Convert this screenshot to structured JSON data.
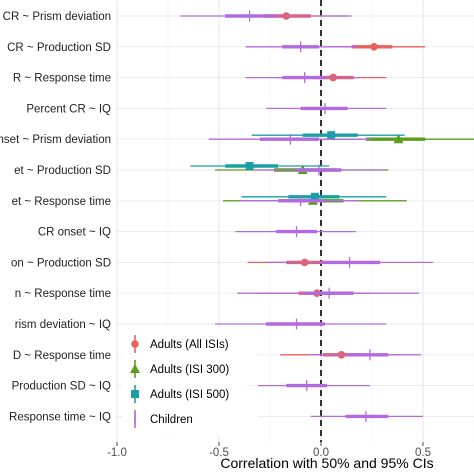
{
  "chart_data": {
    "type": "forest",
    "xlabel": "Correlation with 50% and 95% CIs",
    "xlim": [
      -1.0,
      0.75
    ],
    "x_ticks": [
      -1.0,
      -0.5,
      0.0,
      0.5
    ],
    "x_tick_labels": [
      "-1.0",
      "-0.5",
      "0.0",
      "0.5"
    ],
    "reference_line": 0,
    "grid": true,
    "legend_position": "bottom-left",
    "rows": [
      "CR ~ Prism deviation",
      "CR ~ Production SD",
      "R ~ Response time",
      "Percent CR ~ IQ",
      "onset ~ Prism deviation",
      "et ~ Production SD",
      "et ~ Response time",
      "CR onset ~ IQ",
      "on ~ Production SD",
      "n ~ Response time",
      "rism deviation ~ IQ",
      "D ~ Response time",
      "Production SD ~ IQ",
      "Response time ~ IQ"
    ],
    "series": [
      {
        "name": "Adults (All ISIs)",
        "color": "#e8615a",
        "marker": "circle",
        "points": [
          {
            "row": 0,
            "est": -0.17,
            "lo50": -0.28,
            "hi50": -0.05,
            "lo95": -0.44,
            "hi95": 0.13
          },
          {
            "row": 1,
            "est": 0.26,
            "lo50": 0.15,
            "hi50": 0.35,
            "lo95": 0.01,
            "hi95": 0.51
          },
          {
            "row": 2,
            "est": 0.06,
            "lo50": -0.03,
            "hi50": 0.16,
            "lo95": -0.22,
            "hi95": 0.32
          },
          {
            "row": 8,
            "est": -0.08,
            "lo50": -0.17,
            "hi50": 0.02,
            "lo95": -0.36,
            "hi95": 0.23
          },
          {
            "row": 9,
            "est": -0.02,
            "lo50": -0.11,
            "hi50": 0.07,
            "lo95": -0.31,
            "hi95": 0.24
          },
          {
            "row": 11,
            "est": 0.1,
            "lo50": 0.01,
            "hi50": 0.2,
            "lo95": -0.2,
            "hi95": 0.38
          }
        ]
      },
      {
        "name": "Adults (ISI 300)",
        "color": "#5a9e1a",
        "marker": "triangle",
        "points": [
          {
            "row": 4,
            "est": 0.38,
            "lo50": 0.22,
            "hi50": 0.51,
            "lo95": -0.12,
            "hi95": 0.75
          },
          {
            "row": 5,
            "est": -0.09,
            "lo50": -0.23,
            "hi50": 0.07,
            "lo95": -0.52,
            "hi95": 0.33
          },
          {
            "row": 6,
            "est": -0.04,
            "lo50": -0.2,
            "hi50": 0.11,
            "lo95": -0.48,
            "hi95": 0.42
          }
        ]
      },
      {
        "name": "Adults (ISI 500)",
        "color": "#1a9fa6",
        "marker": "square",
        "points": [
          {
            "row": 4,
            "est": 0.05,
            "lo50": -0.09,
            "hi50": 0.18,
            "lo95": -0.34,
            "hi95": 0.41
          },
          {
            "row": 5,
            "est": -0.35,
            "lo50": -0.47,
            "hi50": -0.21,
            "lo95": -0.64,
            "hi95": 0.04
          },
          {
            "row": 6,
            "est": -0.03,
            "lo50": -0.16,
            "hi50": 0.09,
            "lo95": -0.39,
            "hi95": 0.32
          }
        ]
      },
      {
        "name": "Children",
        "color": "#b36ae0",
        "marker": "cross",
        "points": [
          {
            "row": 0,
            "est": -0.35,
            "lo50": -0.47,
            "hi50": -0.22,
            "lo95": -0.69,
            "hi95": 0.15
          },
          {
            "row": 1,
            "est": -0.1,
            "lo50": -0.19,
            "hi50": -0.01,
            "lo95": -0.37,
            "hi95": 0.18
          },
          {
            "row": 2,
            "est": -0.08,
            "lo50": -0.19,
            "hi50": 0.02,
            "lo95": -0.37,
            "hi95": 0.19
          },
          {
            "row": 3,
            "est": 0.02,
            "lo50": -0.1,
            "hi50": 0.13,
            "lo95": -0.27,
            "hi95": 0.32
          },
          {
            "row": 4,
            "est": -0.15,
            "lo50": -0.3,
            "hi50": -0.01,
            "lo95": -0.55,
            "hi95": 0.24
          },
          {
            "row": 5,
            "est": -0.01,
            "lo50": -0.12,
            "hi50": 0.1,
            "lo95": -0.33,
            "hi95": 0.31
          },
          {
            "row": 6,
            "est": -0.1,
            "lo50": -0.21,
            "hi50": 0.01,
            "lo95": -0.4,
            "hi95": 0.19
          },
          {
            "row": 7,
            "est": -0.12,
            "lo50": -0.22,
            "hi50": -0.02,
            "lo95": -0.42,
            "hi95": 0.17
          },
          {
            "row": 8,
            "est": 0.14,
            "lo50": 0.0,
            "hi50": 0.29,
            "lo95": -0.26,
            "hi95": 0.55
          },
          {
            "row": 9,
            "est": 0.04,
            "lo50": -0.08,
            "hi50": 0.16,
            "lo95": -0.41,
            "hi95": 0.48
          },
          {
            "row": 10,
            "est": -0.12,
            "lo50": -0.27,
            "hi50": 0.02,
            "lo95": -0.52,
            "hi95": 0.32
          },
          {
            "row": 11,
            "est": 0.24,
            "lo50": 0.13,
            "hi50": 0.33,
            "lo95": -0.06,
            "hi95": 0.49
          },
          {
            "row": 12,
            "est": -0.07,
            "lo50": -0.17,
            "hi50": 0.03,
            "lo95": -0.37,
            "hi95": 0.24
          },
          {
            "row": 13,
            "est": 0.22,
            "lo50": 0.12,
            "hi50": 0.33,
            "lo95": -0.05,
            "hi95": 0.5
          }
        ]
      }
    ]
  }
}
